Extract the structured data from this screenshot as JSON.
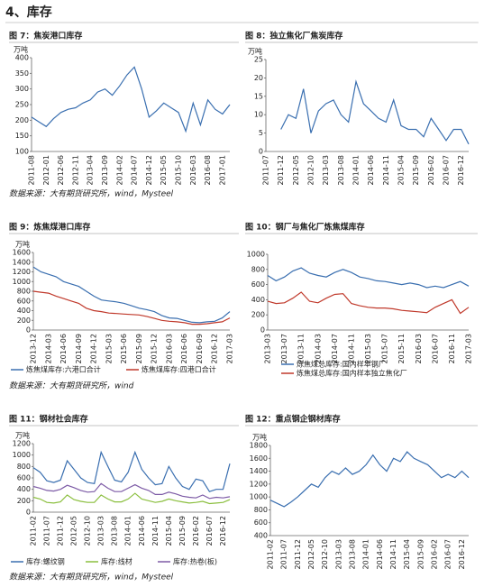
{
  "header": {
    "title": "4、库存"
  },
  "sources": [
    "数据来源：大有期货研究所，wind，Mysteel",
    "数据来源：大有期货研究所，wind",
    "数据来源：大有期货研究所，wind，Mysteel"
  ],
  "chart_data": [
    {
      "type": "line",
      "title": "图 7：焦炭港口库存",
      "y_label": "万吨",
      "categories": [
        "2011-08",
        null,
        "2012-01",
        null,
        "2012-06",
        null,
        "2012-11",
        null,
        "2013-04",
        null,
        "2013-09",
        null,
        "2014-02",
        null,
        "2014-07",
        null,
        "2014-12",
        null,
        "2015-05",
        null,
        "2015-10",
        null,
        "2016-03",
        null,
        "2016-08",
        null,
        "2017-01",
        null
      ],
      "series": [
        {
          "color": "#3a6fb0",
          "values": [
            210,
            195,
            180,
            205,
            225,
            235,
            240,
            255,
            265,
            290,
            300,
            280,
            310,
            345,
            370,
            300,
            210,
            230,
            255,
            240,
            225,
            165,
            255,
            185,
            265,
            235,
            220,
            250
          ]
        }
      ],
      "ylim": [
        100,
        400
      ],
      "yticks": [
        100,
        150,
        200,
        250,
        300,
        350,
        400
      ]
    },
    {
      "type": "line",
      "title": "图 8：独立焦化厂焦炭库存",
      "y_label": "万吨",
      "categories": [
        "2011-07",
        null,
        "2011-12",
        null,
        "2012-05",
        null,
        "2012-10",
        null,
        "2013-03",
        null,
        "2013-08",
        null,
        "2014-01",
        null,
        "2014-06",
        null,
        "2014-11",
        null,
        "2015-04",
        null,
        "2015-09",
        null,
        "2016-02",
        null,
        "2016-07",
        null,
        "2016-12",
        null
      ],
      "series": [
        {
          "color": "#3a6fb0",
          "values": [
            null,
            null,
            6,
            10,
            9,
            17,
            5,
            11,
            13,
            14,
            10,
            8,
            19,
            13,
            11,
            9,
            8,
            14,
            7,
            6,
            6,
            4,
            9,
            6,
            3,
            6,
            6,
            2
          ]
        }
      ],
      "ylim": [
        0,
        25
      ],
      "yticks": [
        0,
        5,
        10,
        15,
        20,
        25
      ]
    },
    {
      "type": "line",
      "title": "图 9：炼焦煤港口库存",
      "y_label": "万吨",
      "categories": [
        "2013-12",
        null,
        "2014-03",
        null,
        "2014-06",
        null,
        "2014-09",
        null,
        "2014-12",
        null,
        "2015-03",
        null,
        "2015-06",
        null,
        "2015-09",
        null,
        "2015-12",
        null,
        "2016-03",
        null,
        "2016-06",
        null,
        "2016-09",
        null,
        "2016-12",
        null,
        "2017-03"
      ],
      "series": [
        {
          "name": "炼焦煤库存:六港口合计",
          "color": "#3a6fb0",
          "values": [
            1300,
            1200,
            1150,
            1100,
            1000,
            950,
            900,
            800,
            700,
            620,
            600,
            580,
            550,
            500,
            450,
            420,
            380,
            300,
            250,
            240,
            200,
            160,
            150,
            170,
            180,
            250,
            380
          ]
        },
        {
          "name": "炼焦煤库存:四港口合计",
          "color": "#c0392b",
          "values": [
            800,
            780,
            760,
            700,
            650,
            600,
            550,
            450,
            400,
            380,
            350,
            340,
            330,
            320,
            310,
            280,
            240,
            200,
            180,
            170,
            150,
            120,
            120,
            130,
            150,
            170,
            250
          ]
        }
      ],
      "ylim": [
        0,
        1600
      ],
      "yticks": [
        0,
        200,
        400,
        600,
        800,
        1000,
        1200,
        1400,
        1600
      ],
      "legend": "bottom"
    },
    {
      "type": "line",
      "title": "图 10：钢厂与焦化厂炼焦煤库存",
      "categories": [
        "2013-03",
        null,
        "2013-07",
        null,
        "2013-11",
        null,
        "2014-03",
        null,
        "2014-07",
        null,
        "2014-11",
        null,
        "2015-03",
        null,
        "2015-07",
        null,
        "2015-11",
        null,
        "2016-03",
        null,
        "2016-07",
        null,
        "2016-11",
        null,
        "2017-03"
      ],
      "series": [
        {
          "name": "炼焦煤总库存:国内样本钢厂",
          "color": "#3a6fb0",
          "values": [
            720,
            650,
            700,
            780,
            820,
            750,
            720,
            700,
            760,
            800,
            760,
            700,
            680,
            650,
            640,
            620,
            600,
            620,
            600,
            560,
            580,
            560,
            600,
            640,
            580
          ]
        },
        {
          "name": "炼焦煤总库存:国内样本独立焦化厂",
          "color": "#c0392b",
          "values": [
            380,
            350,
            360,
            420,
            500,
            380,
            360,
            420,
            470,
            480,
            350,
            320,
            300,
            290,
            290,
            280,
            260,
            250,
            240,
            230,
            300,
            350,
            400,
            220,
            300
          ]
        }
      ],
      "ylim": [
        0,
        1000
      ],
      "yticks": [
        0,
        200,
        400,
        600,
        800,
        1000
      ],
      "legend": "bottom"
    },
    {
      "type": "line",
      "title": "图 11：钢材社会库存",
      "y_label": "万吨",
      "categories": [
        "2011-02",
        null,
        "2011-07",
        null,
        "2011-12",
        null,
        "2012-05",
        null,
        "2012-10",
        null,
        "2013-03",
        null,
        "2013-08",
        null,
        "2014-01",
        null,
        "2014-06",
        null,
        "2014-11",
        null,
        "2015-04",
        null,
        "2015-09",
        null,
        "2016-02",
        null,
        "2016-07",
        null,
        "2016-12",
        null
      ],
      "series": [
        {
          "name": "库存:螺纹钢",
          "color": "#3a6fb0",
          "values": [
            780,
            700,
            550,
            520,
            560,
            900,
            750,
            600,
            520,
            500,
            1050,
            800,
            560,
            530,
            700,
            1050,
            750,
            600,
            480,
            500,
            800,
            600,
            450,
            400,
            580,
            550,
            360,
            400,
            400,
            850
          ]
        },
        {
          "name": "库存:线材",
          "color": "#8bbf3f",
          "values": [
            260,
            230,
            170,
            160,
            180,
            300,
            220,
            190,
            170,
            170,
            300,
            230,
            180,
            180,
            230,
            330,
            230,
            200,
            170,
            190,
            230,
            200,
            180,
            160,
            170,
            190,
            150,
            160,
            170,
            220
          ]
        },
        {
          "name": "库存:热卷(板)",
          "color": "#7d5ba6",
          "values": [
            450,
            420,
            380,
            370,
            400,
            470,
            430,
            380,
            350,
            360,
            500,
            420,
            360,
            360,
            420,
            480,
            420,
            380,
            310,
            310,
            350,
            320,
            280,
            260,
            250,
            300,
            240,
            260,
            250,
            270
          ]
        }
      ],
      "ylim": [
        0,
        1200
      ],
      "yticks": [
        0,
        200,
        400,
        600,
        800,
        1000,
        1200
      ],
      "legend": "bottom"
    },
    {
      "type": "line",
      "title": "图 12：重点钢企钢材库存",
      "y_label": "万吨",
      "categories": [
        "2011-02",
        null,
        "2011-07",
        null,
        "2011-12",
        null,
        "2012-05",
        null,
        "2012-10",
        null,
        "2013-03",
        null,
        "2013-08",
        null,
        "2014-01",
        null,
        "2014-06",
        null,
        "2014-11",
        null,
        "2015-04",
        null,
        "2015-09",
        null,
        "2016-02",
        null,
        "2016-07",
        null,
        "2016-12",
        null
      ],
      "series": [
        {
          "color": "#3a6fb0",
          "values": [
            950,
            900,
            850,
            920,
            1000,
            1100,
            1200,
            1150,
            1300,
            1400,
            1350,
            1450,
            1350,
            1400,
            1500,
            1650,
            1500,
            1400,
            1600,
            1550,
            1700,
            1600,
            1550,
            1500,
            1400,
            1300,
            1350,
            1300,
            1400,
            1300
          ]
        }
      ],
      "ylim": [
        400,
        1800
      ],
      "yticks": [
        400,
        600,
        800,
        1000,
        1200,
        1400,
        1600,
        1800
      ]
    }
  ]
}
